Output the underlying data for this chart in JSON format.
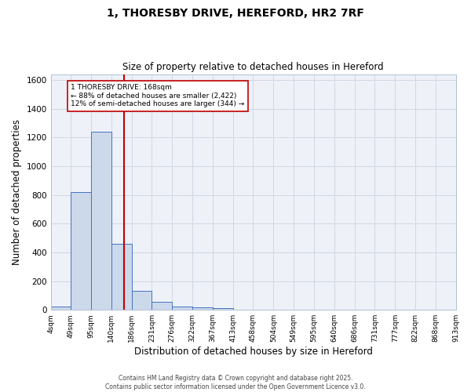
{
  "title_line1": "1, THORESBY DRIVE, HEREFORD, HR2 7RF",
  "title_line2": "Size of property relative to detached houses in Hereford",
  "xlabel": "Distribution of detached houses by size in Hereford",
  "ylabel": "Number of detached properties",
  "bar_edges": [
    4,
    49,
    95,
    140,
    186,
    231,
    276,
    322,
    367,
    413,
    458,
    504,
    549,
    595,
    640,
    686,
    731,
    777,
    822,
    868,
    913
  ],
  "bar_heights": [
    22,
    820,
    1240,
    460,
    130,
    57,
    25,
    15,
    10,
    0,
    0,
    0,
    0,
    0,
    0,
    0,
    0,
    0,
    0,
    0
  ],
  "bar_color": "#ccd9ea",
  "bar_edge_color": "#4472c4",
  "grid_color": "#d0d8e4",
  "bg_color": "#eef1f8",
  "vline_x": 168,
  "vline_color": "#c00000",
  "annotation_text": "1 THORESBY DRIVE: 168sqm\n← 88% of detached houses are smaller (2,422)\n12% of semi-detached houses are larger (344) →",
  "annotation_box_color": "#ffffff",
  "annotation_box_edge": "#c00000",
  "ylim": [
    0,
    1640
  ],
  "yticks": [
    0,
    200,
    400,
    600,
    800,
    1000,
    1200,
    1400,
    1600
  ],
  "xtick_labels": [
    "4sqm",
    "49sqm",
    "95sqm",
    "140sqm",
    "186sqm",
    "231sqm",
    "276sqm",
    "322sqm",
    "367sqm",
    "413sqm",
    "458sqm",
    "504sqm",
    "549sqm",
    "595sqm",
    "640sqm",
    "686sqm",
    "731sqm",
    "777sqm",
    "822sqm",
    "868sqm",
    "913sqm"
  ],
  "footer_line1": "Contains HM Land Registry data © Crown copyright and database right 2025.",
  "footer_line2": "Contains public sector information licensed under the Open Government Licence v3.0."
}
